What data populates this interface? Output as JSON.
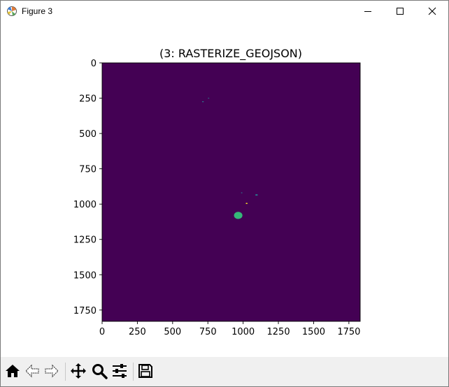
{
  "window": {
    "title": "Figure 3",
    "icons": {
      "app": "matplotlib-icon",
      "minimize": "minimize-icon",
      "maximize": "maximize-icon",
      "close": "close-icon"
    }
  },
  "toolbar": {
    "buttons": [
      {
        "name": "home-button",
        "icon": "home-icon"
      },
      {
        "name": "back-button",
        "icon": "back-arrow-icon"
      },
      {
        "name": "forward-button",
        "icon": "forward-arrow-icon"
      },
      {
        "name": "pan-button",
        "icon": "pan-icon"
      },
      {
        "name": "zoom-button",
        "icon": "zoom-icon"
      },
      {
        "name": "configure-subplots-button",
        "icon": "sliders-icon"
      },
      {
        "name": "save-button",
        "icon": "save-icon"
      }
    ]
  },
  "chart_data": {
    "type": "heatmap",
    "title": "(3: RASTERIZE_GEOJSON)",
    "xlabel": "",
    "ylabel": "",
    "xlim": [
      0,
      1830
    ],
    "ylim": [
      1830,
      0
    ],
    "xticks": [
      0,
      250,
      500,
      750,
      1000,
      1250,
      1500,
      1750
    ],
    "yticks": [
      0,
      250,
      500,
      750,
      1000,
      1250,
      1500,
      1750
    ],
    "colors": {
      "background": "#440154",
      "feature_large": "#35b779",
      "feature_small": "#2a788e",
      "feature_light": "#fde725"
    },
    "features": [
      {
        "x": 715,
        "y": 275,
        "size": 12,
        "level": "small"
      },
      {
        "x": 755,
        "y": 250,
        "size": 6,
        "level": "small"
      },
      {
        "x": 990,
        "y": 920,
        "size": 6,
        "level": "small"
      },
      {
        "x": 1095,
        "y": 935,
        "size": 18,
        "level": "small"
      },
      {
        "x": 1025,
        "y": 995,
        "size": 14,
        "level": "light"
      },
      {
        "x": 965,
        "y": 1080,
        "size": 60,
        "level": "large"
      }
    ]
  }
}
